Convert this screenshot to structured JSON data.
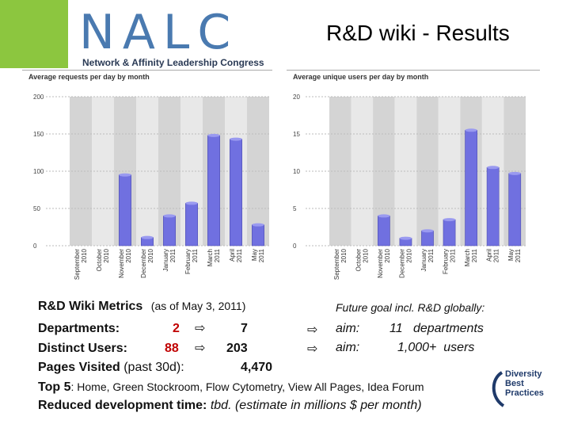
{
  "header": {
    "logo_text": "NALC",
    "logo_subtitle": "Network & Affinity Leadership Congress",
    "title": "R&D wiki - Results"
  },
  "chart_data": [
    {
      "type": "bar",
      "title": "Average requests per day by month",
      "categories": [
        "September 2010",
        "October 2010",
        "November 2010",
        "December 2010",
        "January 2011",
        "February 2011",
        "March 2011",
        "April 2011",
        "May 2011"
      ],
      "values": [
        0,
        0,
        95,
        11,
        40,
        57,
        148,
        143,
        28
      ],
      "yticks": [
        "0",
        "50",
        "100",
        "150",
        "200"
      ],
      "ylim": [
        0,
        200
      ],
      "color": "#7070e0"
    },
    {
      "type": "bar",
      "title": "Average unique users per day by month",
      "categories": [
        "September 2010",
        "October 2010",
        "November 2010",
        "December 2010",
        "January 2011",
        "February 2011",
        "March 2011",
        "April 2011",
        "May 2011"
      ],
      "values": [
        0,
        0,
        4,
        1,
        2,
        3.5,
        15.5,
        10.5,
        9.7
      ],
      "yticks": [
        "0",
        "5",
        "10",
        "15",
        "20"
      ],
      "ylim": [
        0,
        20
      ],
      "color": "#7070e0"
    }
  ],
  "metrics": {
    "heading": "R&D Wiki Metrics",
    "as_of": "(as of May 3, 2011)",
    "departments_label": "Departments:",
    "departments_now": "2",
    "departments_next": "7",
    "users_label": "Distinct Users:",
    "users_now": "88",
    "users_next": "203",
    "pages_label": "Pages Visited",
    "pages_period": "(past 30d):",
    "pages_value": "4,470",
    "top5_label": "Top 5",
    "top5_text": ": Home, Green Stockroom, Flow Cytometry, View All Pages, Idea Forum",
    "reduced_label": "Reduced development time:",
    "reduced_value": "tbd. (estimate in millions $ per month)"
  },
  "goals": {
    "heading": "Future goal incl. R&D globally:",
    "aim1_label": "aim:",
    "aim1_value": "11   departments",
    "aim2_label": "aim:",
    "aim2_value": "1,000+  users"
  },
  "arrow_glyph": "⇨",
  "dbp_logo": {
    "line1": "Diversity",
    "line2": "Best",
    "line3": "Practices"
  },
  "colors": {
    "logo_green": "#8cc63f",
    "logo_blue": "#4a7ab0",
    "bar": "#7070e0",
    "plot_bg": "#dcdcdc",
    "red": "#c00000"
  }
}
